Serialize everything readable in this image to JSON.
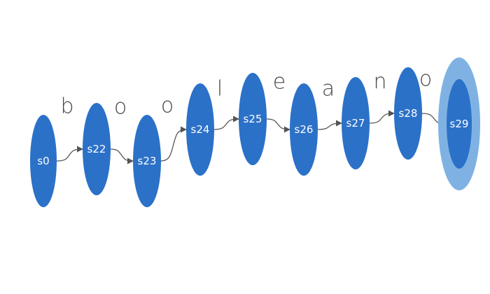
{
  "colors": {
    "state_fill": "#2b71c8",
    "accept_ring": "#7fb2e3",
    "edge": "#555555",
    "edge_label": "#4a4a4a"
  },
  "states": [
    {
      "id": "s0",
      "label": "s0"
    },
    {
      "id": "s22",
      "label": "s22"
    },
    {
      "id": "s23",
      "label": "s23"
    },
    {
      "id": "s24",
      "label": "s24"
    },
    {
      "id": "s25",
      "label": "s25"
    },
    {
      "id": "s26",
      "label": "s26"
    },
    {
      "id": "s27",
      "label": "s27"
    },
    {
      "id": "s28",
      "label": "s28"
    },
    {
      "id": "s29",
      "label": "s29",
      "accepting": true
    }
  ],
  "transitions": [
    {
      "from": "s0",
      "to": "s22",
      "label": "b"
    },
    {
      "from": "s22",
      "to": "s23",
      "label": "o"
    },
    {
      "from": "s23",
      "to": "s24",
      "label": "o"
    },
    {
      "from": "s24",
      "to": "s25",
      "label": "l"
    },
    {
      "from": "s25",
      "to": "s26",
      "label": "e"
    },
    {
      "from": "s26",
      "to": "s27",
      "label": "a"
    },
    {
      "from": "s27",
      "to": "s28",
      "label": "n"
    },
    {
      "from": "s28",
      "to": "s29",
      "label": "o"
    }
  ]
}
